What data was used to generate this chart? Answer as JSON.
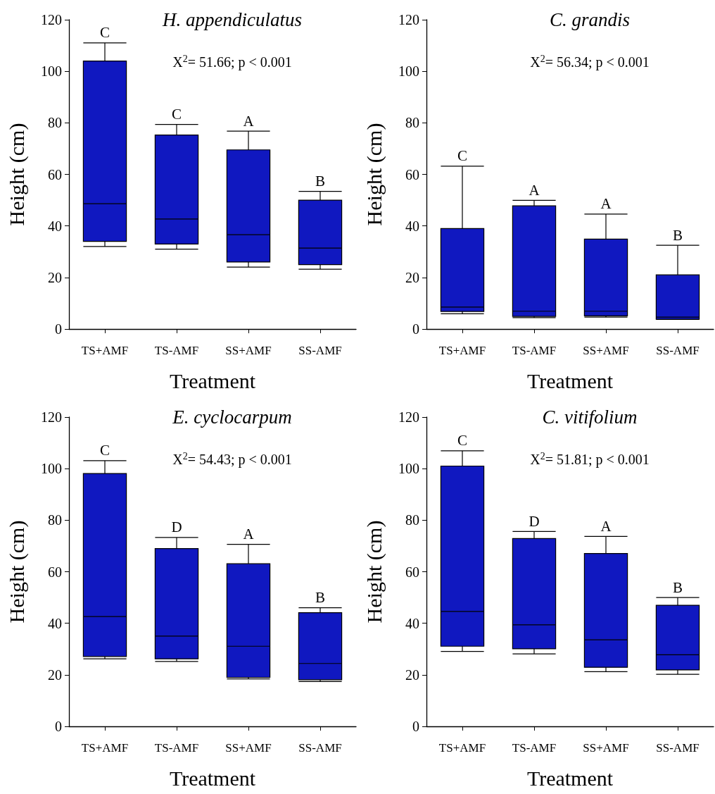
{
  "chart_data": [
    {
      "type": "box",
      "title": "H. appendiculatus",
      "xlabel": "Treatment",
      "ylabel": "Height (cm)",
      "categories": [
        "TS+AMF",
        "TS-AMF",
        "SS+AMF",
        "SS-AMF"
      ],
      "ylim": [
        0,
        120
      ],
      "yticks": [
        0,
        20,
        40,
        60,
        80,
        100,
        120
      ],
      "grid": false,
      "series": [
        {
          "color": "#1018c0",
          "boxes": [
            {
              "low": 32,
              "q1": 34,
              "median": 48.6,
              "q3": 104,
              "high": 111
            },
            {
              "low": 31,
              "q1": 33,
              "median": 42.7,
              "q3": 75.3,
              "high": 79.4
            },
            {
              "low": 24,
              "q1": 26,
              "median": 36.6,
              "q3": 69.5,
              "high": 76.8
            },
            {
              "low": 23.2,
              "q1": 25,
              "median": 31.4,
              "q3": 50,
              "high": 53.4
            }
          ]
        }
      ],
      "annotations": [
        "X$^{2}$= 51.66; p < 0.001",
        {
          "text": "C",
          "x": "TS+AMF",
          "y": 111
        },
        {
          "text": "C",
          "x": "TS-AMF",
          "y": 79.4
        },
        {
          "text": "A",
          "x": "SS+AMF",
          "y": 76.8
        },
        {
          "text": "B",
          "x": "SS-AMF",
          "y": 53.4
        }
      ]
    },
    {
      "type": "box",
      "title": "C. grandis",
      "xlabel": "Treatment",
      "ylabel": "Height (cm)",
      "categories": [
        "TS+AMF",
        "TS-AMF",
        "SS+AMF",
        "SS-AMF"
      ],
      "ylim": [
        0,
        120
      ],
      "yticks": [
        0,
        20,
        40,
        60,
        80,
        100,
        120
      ],
      "grid": false,
      "series": [
        {
          "color": "#1018c0",
          "boxes": [
            {
              "low": 5.9,
              "q1": 6.8,
              "median": 8.5,
              "q3": 39,
              "high": 63.2
            },
            {
              "low": 4.4,
              "q1": 4.9,
              "median": 6.9,
              "q3": 47.8,
              "high": 49.9
            },
            {
              "low": 4.6,
              "q1": 5.1,
              "median": 6.9,
              "q3": 34.9,
              "high": 44.6
            },
            {
              "low": 3.7,
              "q1": 3.8,
              "median": 4.6,
              "q3": 21,
              "high": 32.5
            }
          ]
        }
      ],
      "annotations": [
        "X$^{2}$= 56.34; p < 0.001",
        {
          "text": "C",
          "x": "TS+AMF",
          "y": 63.2
        },
        {
          "text": "A",
          "x": "TS-AMF",
          "y": 49.9
        },
        {
          "text": "A",
          "x": "SS+AMF",
          "y": 44.6
        },
        {
          "text": "B",
          "x": "SS-AMF",
          "y": 32.5
        }
      ]
    },
    {
      "type": "box",
      "title": "E. cyclocarpum",
      "xlabel": "Treatment",
      "ylabel": "Height (cm)",
      "categories": [
        "TS+AMF",
        "TS-AMF",
        "SS+AMF",
        "SS-AMF"
      ],
      "ylim": [
        0,
        120
      ],
      "yticks": [
        0,
        20,
        40,
        60,
        80,
        100,
        120
      ],
      "grid": false,
      "series": [
        {
          "color": "#1018c0",
          "boxes": [
            {
              "low": 26.2,
              "q1": 27.1,
              "median": 42.6,
              "q3": 98.1,
              "high": 103.1
            },
            {
              "low": 25.2,
              "q1": 26.2,
              "median": 35,
              "q3": 69,
              "high": 73.3
            },
            {
              "low": 18.4,
              "q1": 19,
              "median": 31.1,
              "q3": 63.1,
              "high": 70.6
            },
            {
              "low": 17.4,
              "q1": 18.1,
              "median": 24.4,
              "q3": 44.1,
              "high": 46
            }
          ]
        }
      ],
      "annotations": [
        "X$^{2}$= 54.43; p < 0.001",
        {
          "text": "C",
          "x": "TS+AMF",
          "y": 103.1
        },
        {
          "text": "D",
          "x": "TS-AMF",
          "y": 73.3
        },
        {
          "text": "A",
          "x": "SS+AMF",
          "y": 70.6
        },
        {
          "text": "B",
          "x": "SS-AMF",
          "y": 46
        }
      ]
    },
    {
      "type": "box",
      "title": "C. vitifolium",
      "xlabel": "Treatment",
      "ylabel": "Height (cm)",
      "categories": [
        "TS+AMF",
        "TS-AMF",
        "SS+AMF",
        "SS-AMF"
      ],
      "ylim": [
        0,
        120
      ],
      "yticks": [
        0,
        20,
        40,
        60,
        80,
        100,
        120
      ],
      "grid": false,
      "series": [
        {
          "color": "#1018c0",
          "boxes": [
            {
              "low": 29.1,
              "q1": 31.1,
              "median": 44.6,
              "q3": 101,
              "high": 106.9
            },
            {
              "low": 28.1,
              "q1": 30.1,
              "median": 39.4,
              "q3": 72.9,
              "high": 75.6
            },
            {
              "low": 21.2,
              "q1": 22.9,
              "median": 33.6,
              "q3": 67.1,
              "high": 73.7
            },
            {
              "low": 20.2,
              "q1": 21.9,
              "median": 27.8,
              "q3": 47,
              "high": 50
            }
          ]
        }
      ],
      "annotations": [
        "X$^{2}$= 51.81; p < 0.001",
        {
          "text": "C",
          "x": "TS+AMF",
          "y": 106.9
        },
        {
          "text": "D",
          "x": "TS-AMF",
          "y": 75.6
        },
        {
          "text": "A",
          "x": "SS+AMF",
          "y": 73.7
        },
        {
          "text": "B",
          "x": "SS-AMF",
          "y": 50
        }
      ]
    }
  ]
}
